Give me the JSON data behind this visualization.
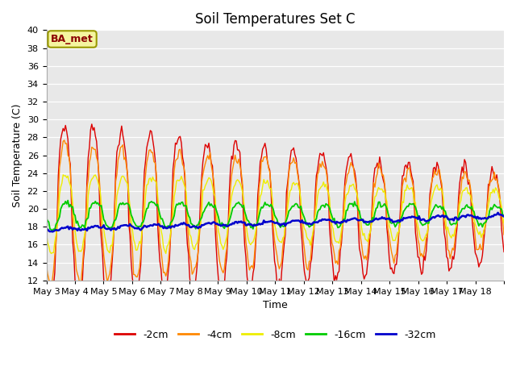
{
  "title": "Soil Temperatures Set C",
  "xlabel": "Time",
  "ylabel": "Soil Temperature (C)",
  "ylim": [
    12,
    40
  ],
  "annotation": "BA_met",
  "legend_labels": [
    "-2cm",
    "-4cm",
    "-8cm",
    "-16cm",
    "-32cm"
  ],
  "line_colors": [
    "#dd0000",
    "#ff8800",
    "#eeee00",
    "#00cc00",
    "#0000cc"
  ],
  "plot_bg": "#e8e8e8",
  "fig_bg": "#ffffff",
  "title_fontsize": 12,
  "tick_fontsize": 8,
  "label_fontsize": 9,
  "n_days": 16,
  "start_day": 3
}
